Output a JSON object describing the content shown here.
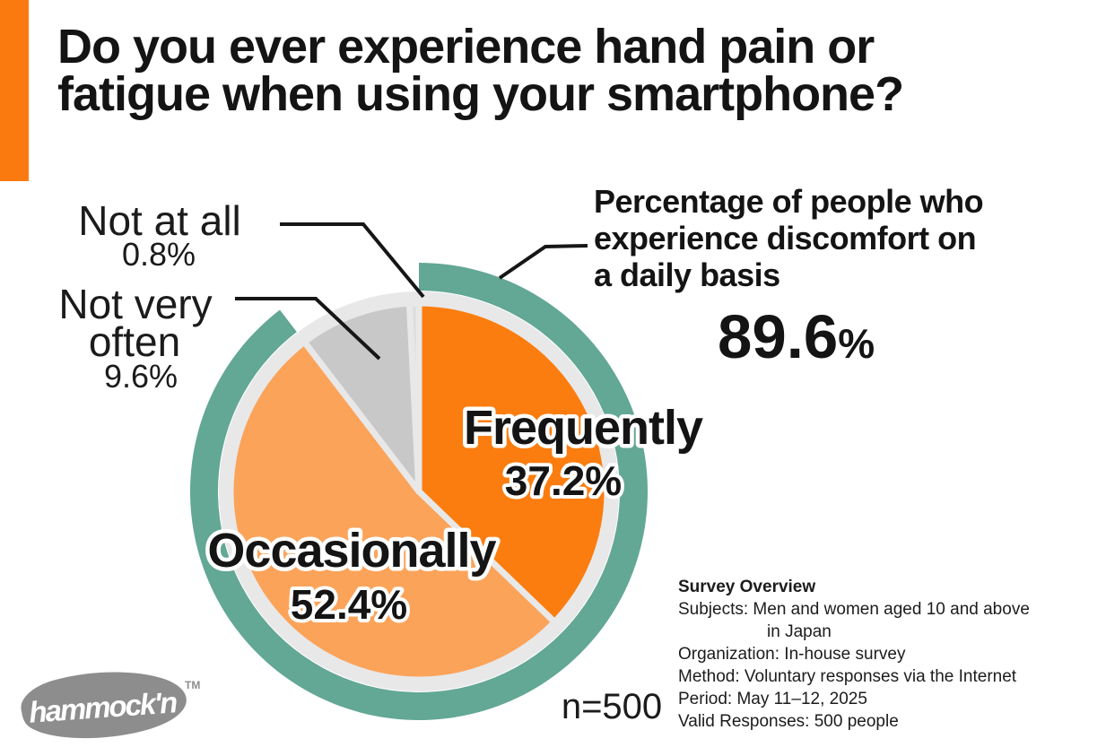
{
  "accent_color": "#fb7a10",
  "title": {
    "line1": "Do you ever experience hand pain or",
    "line2": "fatigue when using your smartphone?"
  },
  "chart_data": {
    "type": "pie",
    "title": "Do you ever experience hand pain or fatigue when using your smartphone?",
    "categories": [
      "Frequently",
      "Occasionally",
      "Not very often",
      "Not at all"
    ],
    "values": [
      37.2,
      52.4,
      9.6,
      0.8
    ],
    "unit": "%",
    "colors": [
      "#fb7d10",
      "#fca35a",
      "#c8c8c8",
      "#dcdcdc"
    ],
    "start_angle_deg": -90,
    "direction": "clockwise",
    "ring_color": "#e8e8e8",
    "sample_size_label": "n=500",
    "highlight": {
      "label": "Percentage of people who experience discomfort on a daily basis",
      "value": 89.6,
      "covers": [
        "Frequently",
        "Occasionally"
      ],
      "color": "#63a795"
    }
  },
  "pie_labels": {
    "frequently": {
      "name": "Frequently",
      "pct": "37.2%"
    },
    "occasionally": {
      "name": "Occasionally",
      "pct": "52.4%"
    },
    "not_very_often": {
      "line1": "Not very",
      "line2": "often",
      "pct": "9.6%"
    },
    "not_at_all": {
      "name": "Not at all",
      "pct": "0.8%"
    }
  },
  "highlight_note": {
    "line1": "Percentage of people who",
    "line2": "experience discomfort on",
    "line3": "a daily basis",
    "value": "89.6",
    "unit": "%"
  },
  "sample": {
    "label": "n=500"
  },
  "overview": {
    "title": "Survey Overview",
    "line_subjects": "Subjects: Men and women aged 10 and above",
    "line_subjects2": "in Japan",
    "line_org": "Organization: In-house survey",
    "line_method": "Method: Voluntary responses via the Internet",
    "line_period": "Period: May 11–12, 2025",
    "line_valid": "Valid Responses: 500 people"
  },
  "logo": {
    "text": "hammock'n",
    "tm": "TM"
  }
}
